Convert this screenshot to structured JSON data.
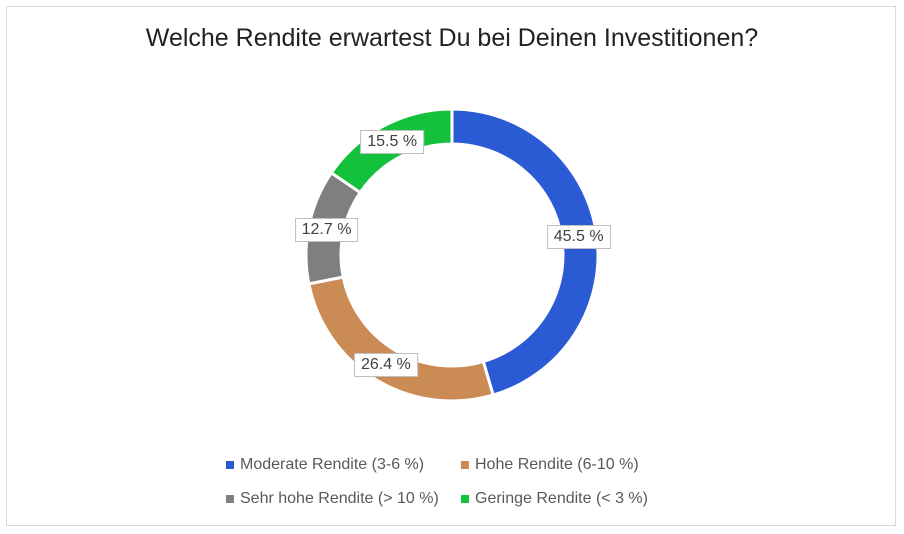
{
  "chart_data": {
    "type": "pie",
    "variant": "donut",
    "title": "Welche Rendite erwartest Du bei Deinen Investitionen?",
    "categories": [
      "Moderate Rendite (3-6 %)",
      "Hohe Rendite (6-10 %)",
      "Sehr hohe Rendite (> 10 %)",
      "Geringe Rendite (< 3 %)"
    ],
    "values": [
      45.5,
      26.4,
      12.7,
      15.5
    ],
    "data_labels": [
      "45.5 %",
      "26.4 %",
      "12.7 %",
      "15.5 %"
    ],
    "colors": [
      "#2a5bd4",
      "#cb8b54",
      "#7f7f7f",
      "#13c13c"
    ],
    "legend_placement": "bottom"
  }
}
